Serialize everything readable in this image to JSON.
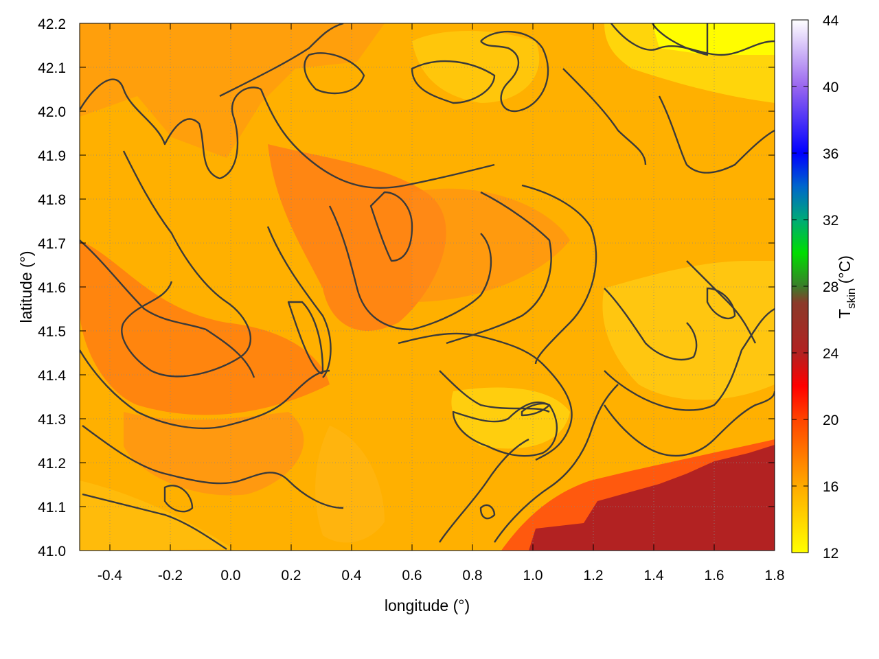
{
  "chart_data": {
    "type": "heatmap",
    "title": "",
    "xlabel": "longitude (°)",
    "ylabel": "latitude (°)",
    "colorbar_label": {
      "main": "T",
      "sub": "skin",
      "unit": " (°C)"
    },
    "xlim": [
      -0.5,
      1.8
    ],
    "ylim": [
      41.0,
      42.2
    ],
    "x_ticks": [
      -0.4,
      -0.2,
      0.0,
      0.2,
      0.4,
      0.6,
      0.8,
      1.0,
      1.2,
      1.4,
      1.6,
      1.8
    ],
    "y_ticks": [
      41.0,
      41.1,
      41.2,
      41.3,
      41.4,
      41.5,
      41.6,
      41.7,
      41.8,
      41.9,
      42.0,
      42.1,
      42.2
    ],
    "x_tick_labels": [
      "-0.4",
      "-0.2",
      "0.0",
      "0.2",
      "0.4",
      "0.6",
      "0.8",
      "1.0",
      "1.2",
      "1.4",
      "1.6",
      "1.8"
    ],
    "y_tick_labels": [
      "41.0",
      "41.1",
      "41.2",
      "41.3",
      "41.4",
      "41.5",
      "41.6",
      "41.7",
      "41.8",
      "41.9",
      "42.0",
      "42.1",
      "42.2"
    ],
    "colorbar_range": [
      12,
      44
    ],
    "colorbar_ticks": [
      12,
      16,
      20,
      24,
      28,
      32,
      36,
      40,
      44
    ],
    "colorbar_tick_labels": [
      "12",
      "16",
      "20",
      "24",
      "28",
      "32",
      "36",
      "40",
      "44"
    ],
    "colormap": [
      {
        "value": 12,
        "color": "#ffff00"
      },
      {
        "value": 16,
        "color": "#ffaa00"
      },
      {
        "value": 20,
        "color": "#ff4400"
      },
      {
        "value": 22,
        "color": "#ff0000"
      },
      {
        "value": 24,
        "color": "#b22222"
      },
      {
        "value": 27,
        "color": "#8b3a2a"
      },
      {
        "value": 28,
        "color": "#3a7d2a"
      },
      {
        "value": 30,
        "color": "#00dd00"
      },
      {
        "value": 32,
        "color": "#00aa77"
      },
      {
        "value": 34,
        "color": "#0066cc"
      },
      {
        "value": 36,
        "color": "#0000ff"
      },
      {
        "value": 40,
        "color": "#9966ee"
      },
      {
        "value": 44,
        "color": "#ffffff"
      }
    ],
    "grid": true,
    "contours": true
  }
}
